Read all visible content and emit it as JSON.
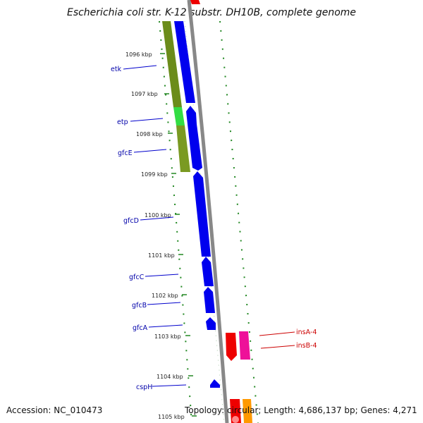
{
  "title": "Escherichia coli str. K-12 substr. DH10B, complete genome",
  "footer": {
    "accession": "Accession: NC_010473",
    "stats": "Topology: circular; Length: 4,686,137 bp; Genes: 4,271"
  },
  "colors": {
    "olive": "#6b8c1a",
    "olive_light": "#8aa02a",
    "green_bright": "#33dd44",
    "blue": "#0000ee",
    "red": "#ee0000",
    "magenta": "#ee1199",
    "orange": "#ff9900",
    "gray_backbone": "#888888",
    "tick_green": "#228822",
    "label_line_blue": "#0000cc",
    "label_line_red": "#cc0000"
  },
  "ticks": [
    "1096 kbp",
    "1097 kbp",
    "1098 kbp",
    "1099 kbp",
    "1100 kbp",
    "1101 kbp",
    "1102 kbp",
    "1103 kbp",
    "1104 kbp",
    "1105 kbp"
  ],
  "genes_left": [
    "etk",
    "etp",
    "gfcE",
    "gfcD",
    "gfcC",
    "gfcB",
    "gfcA",
    "cspH"
  ],
  "genes_right": [
    "insA-4",
    "insB-4"
  ]
}
